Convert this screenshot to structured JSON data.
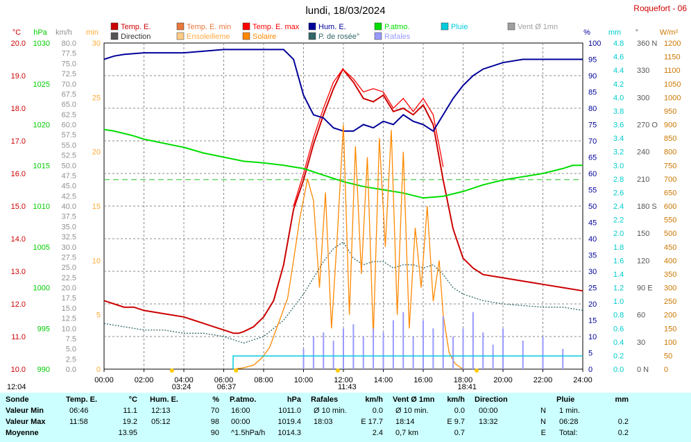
{
  "header": {
    "title": "lundi, 18/03/2024",
    "station": "Roquefort - 06"
  },
  "legend": {
    "row1": [
      {
        "label": "Temp. E.",
        "color": "#cc0000"
      },
      {
        "label": "Temp. E. min",
        "color": "#e8783c"
      },
      {
        "label": "Temp. E. max",
        "color": "#ff0000"
      },
      {
        "label": "Hum. E.",
        "color": "#000099"
      },
      {
        "label": "P.atmo.",
        "color": "#00dd00"
      },
      {
        "label": "Pluie",
        "color": "#00ccdd"
      },
      {
        "label": "Vent Ø 1mn",
        "color": "#a0a0a0"
      }
    ],
    "row2": [
      {
        "label": "Direction",
        "color": "#555555"
      },
      {
        "label": "Ensoleilleme",
        "color": "#ffcc88"
      },
      {
        "label": "Solaire",
        "color": "#ff8800"
      },
      {
        "label": "P. de rosée°",
        "color": "#336666"
      },
      {
        "label": "Rafales",
        "color": "#9999ff"
      }
    ]
  },
  "axes": {
    "units": {
      "temp": "°C",
      "press": "hPa",
      "wind": "km/h",
      "min": "min",
      "hum": "%",
      "rain": "mm",
      "dir": "°",
      "solar": "W/m²"
    },
    "temp": {
      "ticks": [
        "20.0",
        "19.0",
        "18.0",
        "17.0",
        "16.0",
        "15.0",
        "14.0",
        "13.0",
        "12.0",
        "11.0",
        "10.0"
      ],
      "color": "#cc0000"
    },
    "press": {
      "ticks": [
        "1030",
        "1025",
        "1020",
        "1015",
        "1010",
        "1005",
        "1000",
        "995",
        "990"
      ],
      "color": "#00cc00"
    },
    "wind": {
      "ticks": [
        "80.0",
        "77.5",
        "75.0",
        "72.5",
        "70.0",
        "67.5",
        "65.0",
        "62.5",
        "60.0",
        "57.5",
        "55.0",
        "52.5",
        "50.0",
        "47.5",
        "45.0",
        "42.5",
        "40.0",
        "37.5",
        "35.0",
        "32.5",
        "30.0",
        "27.5",
        "25.0",
        "22.5",
        "20.0",
        "17.5",
        "15.0",
        "12.5",
        "10.0",
        "7.5",
        "5.0",
        "2.5",
        "0.0"
      ],
      "color": "#909090"
    },
    "min": {
      "ticks": [
        "30",
        "25",
        "20",
        "15",
        "10",
        "5",
        "0"
      ],
      "color": "#ffaa33"
    },
    "hum": {
      "ticks": [
        "100",
        "95",
        "90",
        "85",
        "80",
        "75",
        "70",
        "65",
        "60",
        "55",
        "50",
        "45",
        "40",
        "35",
        "30",
        "25",
        "20",
        "15",
        "10",
        "5",
        "0"
      ],
      "color": "#000099"
    },
    "rain": {
      "ticks": [
        "4.8",
        "4.6",
        "4.4",
        "4.2",
        "4.0",
        "3.8",
        "3.6",
        "3.4",
        "3.2",
        "3.0",
        "2.8",
        "2.6",
        "2.4",
        "2.2",
        "2.0",
        "1.8",
        "1.6",
        "1.4",
        "1.2",
        "1.0",
        "0.8",
        "0.6",
        "0.4",
        "0.2",
        "0.0"
      ],
      "color": "#00cccc"
    },
    "dir": {
      "ticks": [
        "360 N",
        "330",
        "300",
        "270 O",
        "240",
        "210",
        "180 S",
        "150",
        "120",
        "90 E",
        "60",
        "30",
        "0 N"
      ],
      "color": "#555555"
    },
    "solar": {
      "ticks": [
        "1200",
        "1150",
        "1100",
        "1050",
        "1000",
        "950",
        "900",
        "850",
        "800",
        "750",
        "700",
        "650",
        "600",
        "550",
        "500",
        "450",
        "400",
        "350",
        "300",
        "250",
        "200",
        "150",
        "100",
        "50",
        "0"
      ],
      "color": "#cc7700"
    },
    "x": {
      "ticks": [
        "00:00",
        "02:00",
        "04:00",
        "06:00",
        "08:00",
        "10:00",
        "12:00",
        "14:00",
        "16:00",
        "18:00",
        "20:00",
        "22:00",
        "24:00"
      ]
    }
  },
  "markers": {
    "moon_set": "12:04",
    "moon_rise": "03:24",
    "sunrise": "06:37",
    "transit": "11:43",
    "sunset": "18:41"
  },
  "chart_data": {
    "type": "line",
    "title": "lundi, 18/03/2024",
    "x_unit": "hours",
    "xlim": [
      0,
      24
    ],
    "series": [
      {
        "name": "Temp. E.",
        "axis": "°C",
        "ylim": [
          10,
          20
        ],
        "color": "#cc0000",
        "x": [
          0,
          0.5,
          1,
          1.5,
          2,
          3,
          4,
          4.5,
          5,
          5.5,
          6,
          6.5,
          6.75,
          7,
          7.5,
          8,
          8.5,
          9,
          9.5,
          10,
          10.5,
          11,
          11.5,
          11.97,
          12.5,
          13,
          13.5,
          14,
          14.5,
          15,
          15.5,
          16,
          16.5,
          17,
          17.5,
          18,
          18.5,
          19,
          20,
          21,
          22,
          23,
          24
        ],
        "y": [
          12.1,
          12.0,
          11.9,
          11.9,
          11.8,
          11.7,
          11.6,
          11.5,
          11.4,
          11.3,
          11.2,
          11.1,
          11.1,
          11.15,
          11.3,
          11.6,
          12.1,
          13.2,
          14.9,
          15.8,
          16.9,
          17.8,
          18.6,
          19.2,
          18.8,
          18.3,
          18.2,
          18.4,
          17.9,
          18.0,
          17.8,
          18.1,
          17.5,
          15.8,
          14.3,
          13.4,
          13.1,
          12.9,
          12.8,
          12.7,
          12.6,
          12.5,
          12.4
        ]
      },
      {
        "name": "Temp. E. max",
        "axis": "°C",
        "ylim": [
          10,
          20
        ],
        "color": "#ff0000",
        "x": [
          9.5,
          10,
          10.5,
          11,
          11.5,
          11.97,
          12.5,
          13,
          13.5,
          14,
          14.5,
          15,
          15.5,
          16,
          16.5,
          17
        ],
        "y": [
          15.0,
          16.0,
          17.1,
          18.0,
          18.8,
          19.2,
          18.9,
          18.5,
          18.6,
          18.5,
          18.0,
          18.3,
          17.9,
          18.3,
          17.8,
          16.2
        ]
      },
      {
        "name": "Hum. E.",
        "axis": "%",
        "ylim": [
          0,
          100
        ],
        "color": "#000099",
        "x": [
          0,
          0.5,
          1,
          2,
          3,
          4,
          5,
          6,
          7,
          8,
          9,
          9.5,
          10,
          10.5,
          11,
          11.5,
          12,
          12.5,
          13,
          13.5,
          14,
          14.5,
          15,
          15.5,
          16,
          16.5,
          17,
          17.5,
          18,
          18.5,
          19,
          20,
          21,
          22,
          23,
          24
        ],
        "y": [
          95,
          96,
          96.5,
          97,
          97,
          97,
          97.5,
          98,
          98,
          98,
          98,
          95,
          84,
          78,
          77,
          74,
          73,
          73,
          75,
          74,
          76,
          75,
          78,
          76,
          75,
          73,
          78,
          83,
          87,
          90,
          92,
          94,
          95,
          95,
          95,
          95
        ]
      },
      {
        "name": "P.atmo.",
        "axis": "hPa",
        "ylim": [
          990,
          1030
        ],
        "color": "#00dd00",
        "x": [
          0,
          0.5,
          1,
          1.5,
          2,
          3,
          4,
          5,
          6,
          7,
          8,
          9,
          10,
          11,
          12,
          13,
          14,
          15,
          16,
          17,
          18,
          19,
          20,
          21,
          22,
          23,
          23.5,
          24
        ],
        "y": [
          1019.4,
          1019.2,
          1018.9,
          1018.6,
          1018.2,
          1017.7,
          1017.2,
          1016.5,
          1016.0,
          1015.5,
          1015.3,
          1015.0,
          1014.6,
          1013.8,
          1013.0,
          1012.4,
          1012.0,
          1011.6,
          1011.0,
          1011.2,
          1011.8,
          1012.6,
          1013.2,
          1013.6,
          1014.0,
          1014.6,
          1015.0,
          1015.0
        ]
      },
      {
        "name": "P. de rosée°",
        "axis": "°C",
        "ylim": [
          10,
          20
        ],
        "color": "#336666",
        "x": [
          0,
          1,
          2,
          3,
          4,
          5,
          6,
          7,
          8,
          9,
          10,
          10.5,
          11,
          11.5,
          12,
          12.5,
          13,
          13.5,
          14,
          14.5,
          15,
          15.5,
          16,
          16.5,
          17,
          17.5,
          18,
          19,
          20,
          21,
          22,
          23,
          24
        ],
        "y": [
          11.4,
          11.3,
          11.2,
          11.2,
          11.1,
          11.1,
          11.0,
          10.8,
          11.0,
          11.5,
          12.3,
          12.8,
          13.3,
          13.7,
          13.9,
          13.4,
          13.2,
          13.3,
          13.3,
          13.1,
          13.2,
          13.2,
          13.1,
          13.2,
          12.9,
          12.5,
          12.3,
          12.1,
          12.0,
          11.95,
          11.9,
          11.9,
          11.8
        ]
      },
      {
        "name": "Solaire",
        "axis": "W/m²",
        "ylim": [
          0,
          1200
        ],
        "color": "#ff8800",
        "x": [
          6.5,
          7,
          7.5,
          7.9,
          8.3,
          8.8,
          9.2,
          9.5,
          9.8,
          10.2,
          10.5,
          10.8,
          11.1,
          11.4,
          11.7,
          12,
          12.3,
          12.6,
          12.9,
          13.2,
          13.5,
          13.8,
          14.1,
          14.4,
          14.7,
          15,
          15.3,
          15.6,
          15.9,
          16.2,
          16.5,
          16.8,
          17,
          17.3,
          17.6,
          18
        ],
        "y": [
          0,
          5,
          15,
          40,
          80,
          180,
          260,
          400,
          550,
          700,
          620,
          300,
          650,
          150,
          500,
          900,
          200,
          820,
          350,
          780,
          120,
          850,
          450,
          880,
          200,
          800,
          150,
          520,
          300,
          600,
          250,
          400,
          200,
          60,
          20,
          0
        ]
      },
      {
        "name": "Rafales",
        "axis": "km/h",
        "ylim": [
          0,
          80
        ],
        "color": "#9999ff",
        "x": [
          10,
          10.5,
          11,
          11.5,
          12,
          12.5,
          13,
          13.5,
          14,
          14.5,
          15,
          15.5,
          16,
          16.5,
          17,
          17.5,
          18,
          18.5,
          19,
          19.5,
          20,
          21,
          22,
          23
        ],
        "y": [
          5,
          8,
          9,
          7,
          10,
          11,
          8,
          10,
          9,
          12,
          14,
          8,
          12,
          10,
          13,
          8,
          10,
          14,
          9,
          6,
          10,
          7,
          8,
          5
        ]
      }
    ]
  },
  "table": {
    "headers": [
      "Sonde",
      "Temp. E.",
      "°C",
      "Hum. E.",
      "%",
      "P.atmo.",
      "hPa",
      "Rafales",
      "km/h",
      "Vent Ø 1mn",
      "km/h",
      "Direction",
      "",
      "Pluie",
      "mm"
    ],
    "rows": [
      {
        "label": "Valeur Min",
        "t_time": "06:46",
        "t_val": "11.1",
        "h_time": "12:13",
        "h_val": "70",
        "p_time": "16:00",
        "p_val": "1011.0",
        "r_time": "Ø 10 min.",
        "r_val": "0.0",
        "v_time": "Ø 10 min.",
        "v_val": "0.0",
        "d_time": "00:00",
        "d_val": "N",
        "pl_time": "1 min.",
        "pl_val": ""
      },
      {
        "label": "Valeur Max",
        "t_time": "11:58",
        "t_val": "19.2",
        "h_time": "05:12",
        "h_val": "98",
        "p_time": "00:00",
        "p_val": "1019.4",
        "r_time": "18:03",
        "r_val": "E 17.7",
        "v_time": "18:14",
        "v_val": "E 9.7",
        "d_time": "13:32",
        "d_val": "N",
        "pl_time": "06:28",
        "pl_val": "0.2"
      },
      {
        "label": "Moyenne",
        "t_time": "",
        "t_val": "13.95",
        "h_time": "",
        "h_val": "90",
        "p_time": "^1.5hPa/h",
        "p_val": "1014.3",
        "r_time": "",
        "r_val": "2.4",
        "v_time": "0,7 km",
        "v_val": "0.7",
        "d_time": "",
        "d_val": "E",
        "pl_time": "Total:",
        "pl_val": "0.2"
      }
    ]
  }
}
